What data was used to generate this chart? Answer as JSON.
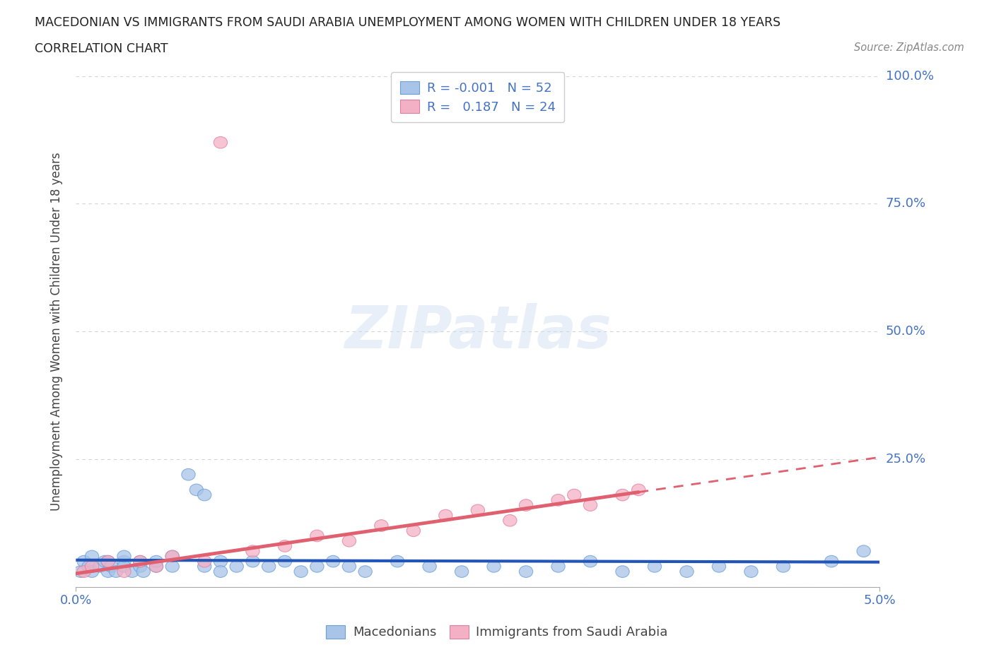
{
  "title_line1": "MACEDONIAN VS IMMIGRANTS FROM SAUDI ARABIA UNEMPLOYMENT AMONG WOMEN WITH CHILDREN UNDER 18 YEARS",
  "title_line2": "CORRELATION CHART",
  "source": "Source: ZipAtlas.com",
  "ylabel": "Unemployment Among Women with Children Under 18 years",
  "xlim": [
    0.0,
    0.05
  ],
  "ylim": [
    0.0,
    1.0
  ],
  "ytick_vals": [
    0.0,
    0.25,
    0.5,
    0.75,
    1.0
  ],
  "ytick_labels": [
    "",
    "25.0%",
    "50.0%",
    "75.0%",
    "100.0%"
  ],
  "xtick_vals": [
    0.0,
    0.05
  ],
  "xtick_labels": [
    "0.0%",
    "5.0%"
  ],
  "watermark": "ZIPatlas",
  "legend_mac_color": "#a8c4e8",
  "legend_saudi_color": "#f4b0c4",
  "mac_edge_color": "#6a9fd8",
  "saudi_edge_color": "#e080a0",
  "macedonians_R": "-0.001",
  "macedonians_N": "52",
  "saudi_R": "0.187",
  "saudi_N": "24",
  "mac_x": [
    0.0003,
    0.0005,
    0.0008,
    0.001,
    0.001,
    0.0015,
    0.0018,
    0.002,
    0.002,
    0.0022,
    0.0025,
    0.003,
    0.003,
    0.003,
    0.0035,
    0.004,
    0.004,
    0.0042,
    0.005,
    0.005,
    0.006,
    0.006,
    0.007,
    0.0075,
    0.008,
    0.008,
    0.009,
    0.009,
    0.01,
    0.011,
    0.012,
    0.013,
    0.014,
    0.015,
    0.016,
    0.017,
    0.018,
    0.02,
    0.022,
    0.024,
    0.026,
    0.028,
    0.03,
    0.032,
    0.034,
    0.036,
    0.038,
    0.04,
    0.042,
    0.044,
    0.047,
    0.049
  ],
  "mac_y": [
    0.03,
    0.05,
    0.04,
    0.03,
    0.06,
    0.04,
    0.05,
    0.03,
    0.05,
    0.04,
    0.03,
    0.05,
    0.04,
    0.06,
    0.03,
    0.04,
    0.05,
    0.03,
    0.04,
    0.05,
    0.06,
    0.04,
    0.22,
    0.19,
    0.18,
    0.04,
    0.05,
    0.03,
    0.04,
    0.05,
    0.04,
    0.05,
    0.03,
    0.04,
    0.05,
    0.04,
    0.03,
    0.05,
    0.04,
    0.03,
    0.04,
    0.03,
    0.04,
    0.05,
    0.03,
    0.04,
    0.03,
    0.04,
    0.03,
    0.04,
    0.05,
    0.07
  ],
  "saudi_x": [
    0.0005,
    0.001,
    0.002,
    0.003,
    0.004,
    0.005,
    0.006,
    0.008,
    0.009,
    0.011,
    0.013,
    0.015,
    0.017,
    0.019,
    0.021,
    0.023,
    0.025,
    0.027,
    0.028,
    0.03,
    0.031,
    0.032,
    0.034,
    0.035
  ],
  "saudi_y": [
    0.03,
    0.04,
    0.05,
    0.03,
    0.05,
    0.04,
    0.06,
    0.05,
    0.87,
    0.07,
    0.08,
    0.1,
    0.09,
    0.12,
    0.11,
    0.14,
    0.15,
    0.13,
    0.16,
    0.17,
    0.18,
    0.16,
    0.18,
    0.19
  ],
  "trend_mac_color": "#2255b8",
  "trend_saudi_color": "#e06070",
  "bg_color": "#ffffff",
  "grid_color": "#c8c8c8",
  "axis_label_color": "#444444",
  "tick_label_color": "#4472c4",
  "title_color": "#222222"
}
